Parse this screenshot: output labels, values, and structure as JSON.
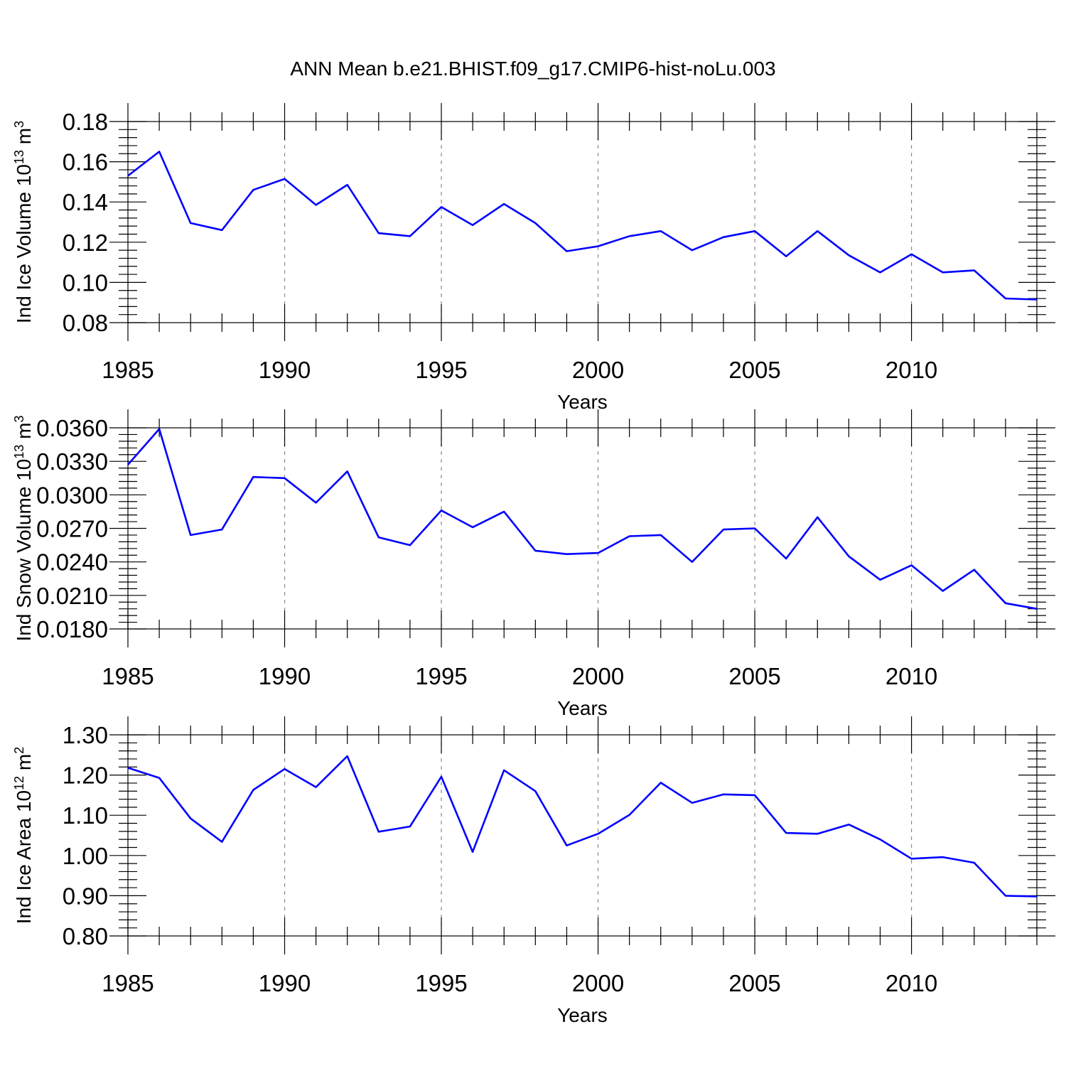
{
  "figure_title": "ANN Mean b.e21.BHIST.f09_g17.CMIP6-hist-noLu.003",
  "chart_data": [
    {
      "type": "line",
      "title": "ANN Mean b.e21.BHIST.f09_g17.CMIP6-hist-noLu.003",
      "xlabel": "Years",
      "ylabel_main": "Ind Ice Volume 10",
      "ylabel_exp": "13",
      "ylabel_unit": " m",
      "ylabel_unit_exp": "3",
      "xlim": [
        1985,
        2014
      ],
      "ylim": [
        0.08,
        0.18
      ],
      "xticks": [
        "1985",
        "1990",
        "1995",
        "2000",
        "2005",
        "2010"
      ],
      "yticks": [
        "0.08",
        "0.10",
        "0.12",
        "0.14",
        "0.16",
        "0.18"
      ],
      "x": [
        1985,
        1986,
        1987,
        1988,
        1989,
        1990,
        1991,
        1992,
        1993,
        1994,
        1995,
        1996,
        1997,
        1998,
        1999,
        2000,
        2001,
        2002,
        2003,
        2004,
        2005,
        2006,
        2007,
        2008,
        2009,
        2010,
        2011,
        2012,
        2013,
        2014
      ],
      "series": [
        {
          "name": "Ind Ice Volume",
          "color": "#0000ff",
          "values": [
            0.153,
            0.165,
            0.1295,
            0.126,
            0.146,
            0.1515,
            0.1385,
            0.1485,
            0.1245,
            0.123,
            0.1375,
            0.1285,
            0.139,
            0.1295,
            0.1155,
            0.118,
            0.123,
            0.1255,
            0.116,
            0.1225,
            0.1255,
            0.113,
            0.1255,
            0.1135,
            0.105,
            0.114,
            0.105,
            0.106,
            0.092,
            0.0915
          ]
        }
      ]
    },
    {
      "type": "line",
      "xlabel": "Years",
      "ylabel_main": "Ind Snow Volume 10",
      "ylabel_exp": "13",
      "ylabel_unit": " m",
      "ylabel_unit_exp": "3",
      "xlim": [
        1985,
        2014
      ],
      "ylim": [
        0.018,
        0.036
      ],
      "xticks": [
        "1985",
        "1990",
        "1995",
        "2000",
        "2005",
        "2010"
      ],
      "yticks": [
        "0.0180",
        "0.0210",
        "0.0240",
        "0.0270",
        "0.0300",
        "0.0330",
        "0.0360"
      ],
      "x": [
        1985,
        1986,
        1987,
        1988,
        1989,
        1990,
        1991,
        1992,
        1993,
        1994,
        1995,
        1996,
        1997,
        1998,
        1999,
        2000,
        2001,
        2002,
        2003,
        2004,
        2005,
        2006,
        2007,
        2008,
        2009,
        2010,
        2011,
        2012,
        2013,
        2014
      ],
      "series": [
        {
          "name": "Ind Snow Volume",
          "color": "#0000ff",
          "values": [
            0.0327,
            0.0359,
            0.0264,
            0.0269,
            0.0316,
            0.0315,
            0.0293,
            0.0321,
            0.0262,
            0.0255,
            0.0286,
            0.0271,
            0.0285,
            0.025,
            0.0247,
            0.0248,
            0.0263,
            0.0264,
            0.024,
            0.0269,
            0.027,
            0.0243,
            0.028,
            0.0245,
            0.0224,
            0.0237,
            0.0214,
            0.0233,
            0.0203,
            0.0198
          ]
        }
      ]
    },
    {
      "type": "line",
      "xlabel": "Years",
      "ylabel_main": "Ind Ice Area 10",
      "ylabel_exp": "12",
      "ylabel_unit": " m",
      "ylabel_unit_exp": "2",
      "xlim": [
        1985,
        2014
      ],
      "ylim": [
        0.8,
        1.3
      ],
      "xticks": [
        "1985",
        "1990",
        "1995",
        "2000",
        "2005",
        "2010"
      ],
      "yticks": [
        "0.80",
        "0.90",
        "1.00",
        "1.10",
        "1.20",
        "1.30"
      ],
      "x": [
        1985,
        1986,
        1987,
        1988,
        1989,
        1990,
        1991,
        1992,
        1993,
        1994,
        1995,
        1996,
        1997,
        1998,
        1999,
        2000,
        2001,
        2002,
        2003,
        2004,
        2005,
        2006,
        2007,
        2008,
        2009,
        2010,
        2011,
        2012,
        2013,
        2014
      ],
      "series": [
        {
          "name": "Ind Ice Area",
          "color": "#0000ff",
          "values": [
            1.218,
            1.193,
            1.092,
            1.034,
            1.163,
            1.215,
            1.17,
            1.247,
            1.059,
            1.072,
            1.196,
            1.009,
            1.212,
            1.16,
            1.025,
            1.054,
            1.101,
            1.181,
            1.131,
            1.152,
            1.15,
            1.056,
            1.054,
            1.077,
            1.04,
            0.992,
            0.996,
            0.982,
            0.9,
            0.898
          ]
        }
      ]
    }
  ]
}
